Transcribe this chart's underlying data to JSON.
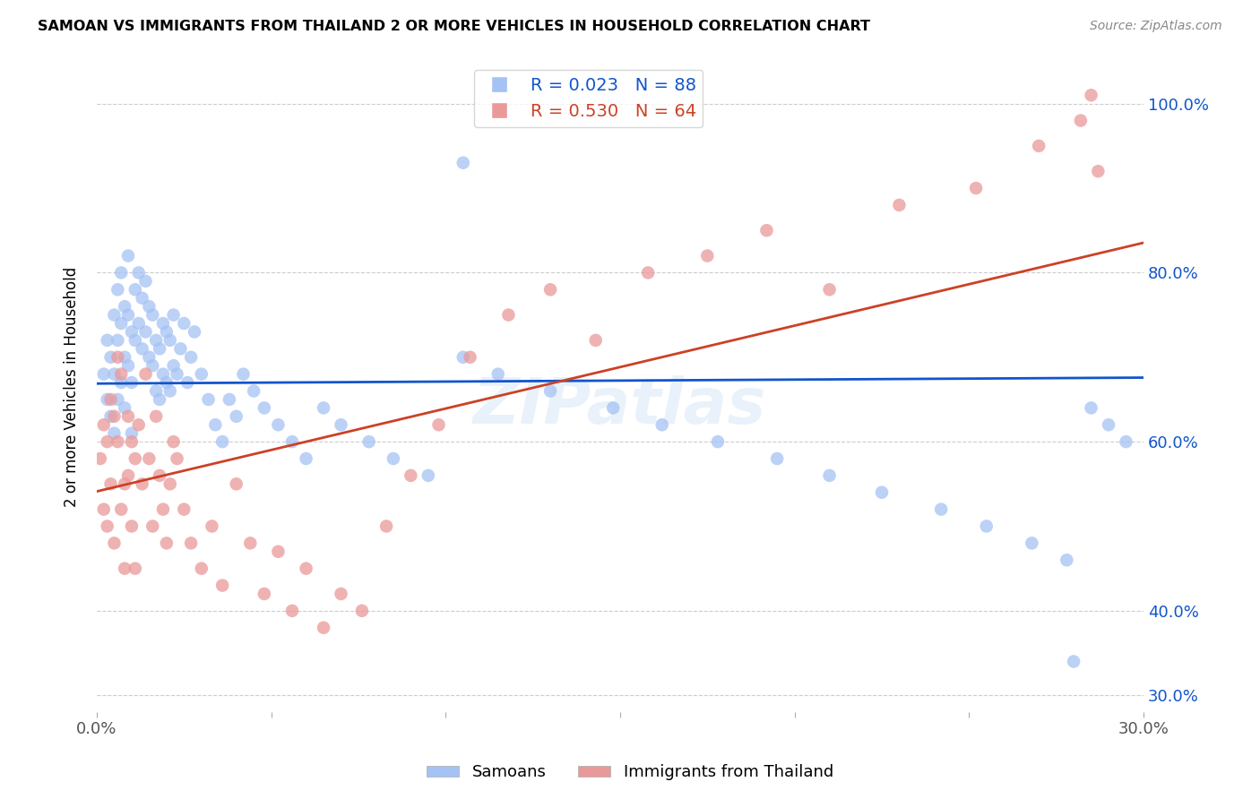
{
  "title": "SAMOAN VS IMMIGRANTS FROM THAILAND 2 OR MORE VEHICLES IN HOUSEHOLD CORRELATION CHART",
  "source": "Source: ZipAtlas.com",
  "ylabel": "2 or more Vehicles in Household",
  "xmin": 0.0,
  "xmax": 0.3,
  "ymin": 0.28,
  "ymax": 1.05,
  "yticks": [
    0.3,
    0.4,
    0.6,
    0.8,
    1.0
  ],
  "ytick_labels": [
    "30.0%",
    "40.0%",
    "60.0%",
    "80.0%",
    "100.0%"
  ],
  "xticks": [
    0.0,
    0.05,
    0.1,
    0.15,
    0.2,
    0.25,
    0.3
  ],
  "xtick_labels": [
    "0.0%",
    "",
    "",
    "",
    "",
    "",
    "30.0%"
  ],
  "samoan_R": 0.023,
  "samoan_N": 88,
  "thailand_R": 0.53,
  "thailand_N": 64,
  "samoan_color": "#a4c2f4",
  "thailand_color": "#ea9999",
  "samoan_line_color": "#1155cc",
  "thailand_line_color": "#cc4125",
  "legend_label_samoan": "Samoans",
  "legend_label_thailand": "Immigrants from Thailand",
  "watermark": "ZIPatlas",
  "samoan_x": [
    0.002,
    0.003,
    0.003,
    0.004,
    0.004,
    0.005,
    0.005,
    0.005,
    0.006,
    0.006,
    0.006,
    0.007,
    0.007,
    0.007,
    0.008,
    0.008,
    0.008,
    0.009,
    0.009,
    0.009,
    0.01,
    0.01,
    0.01,
    0.011,
    0.011,
    0.012,
    0.012,
    0.013,
    0.013,
    0.014,
    0.014,
    0.015,
    0.015,
    0.016,
    0.016,
    0.017,
    0.017,
    0.018,
    0.018,
    0.019,
    0.019,
    0.02,
    0.02,
    0.021,
    0.021,
    0.022,
    0.022,
    0.023,
    0.024,
    0.025,
    0.026,
    0.027,
    0.028,
    0.03,
    0.032,
    0.034,
    0.036,
    0.038,
    0.04,
    0.042,
    0.045,
    0.048,
    0.052,
    0.056,
    0.06,
    0.065,
    0.07,
    0.078,
    0.085,
    0.095,
    0.105,
    0.115,
    0.13,
    0.148,
    0.162,
    0.178,
    0.195,
    0.21,
    0.225,
    0.242,
    0.255,
    0.268,
    0.278,
    0.285,
    0.29,
    0.295,
    0.105,
    0.28
  ],
  "samoan_y": [
    0.68,
    0.72,
    0.65,
    0.7,
    0.63,
    0.75,
    0.68,
    0.61,
    0.78,
    0.72,
    0.65,
    0.8,
    0.74,
    0.67,
    0.76,
    0.7,
    0.64,
    0.82,
    0.75,
    0.69,
    0.73,
    0.67,
    0.61,
    0.78,
    0.72,
    0.8,
    0.74,
    0.77,
    0.71,
    0.79,
    0.73,
    0.76,
    0.7,
    0.75,
    0.69,
    0.72,
    0.66,
    0.71,
    0.65,
    0.74,
    0.68,
    0.73,
    0.67,
    0.72,
    0.66,
    0.75,
    0.69,
    0.68,
    0.71,
    0.74,
    0.67,
    0.7,
    0.73,
    0.68,
    0.65,
    0.62,
    0.6,
    0.65,
    0.63,
    0.68,
    0.66,
    0.64,
    0.62,
    0.6,
    0.58,
    0.64,
    0.62,
    0.6,
    0.58,
    0.56,
    0.7,
    0.68,
    0.66,
    0.64,
    0.62,
    0.6,
    0.58,
    0.56,
    0.54,
    0.52,
    0.5,
    0.48,
    0.46,
    0.64,
    0.62,
    0.6,
    0.93,
    0.34
  ],
  "thailand_x": [
    0.001,
    0.002,
    0.002,
    0.003,
    0.003,
    0.004,
    0.004,
    0.005,
    0.005,
    0.006,
    0.006,
    0.007,
    0.007,
    0.008,
    0.008,
    0.009,
    0.009,
    0.01,
    0.01,
    0.011,
    0.011,
    0.012,
    0.013,
    0.014,
    0.015,
    0.016,
    0.017,
    0.018,
    0.019,
    0.02,
    0.021,
    0.022,
    0.023,
    0.025,
    0.027,
    0.03,
    0.033,
    0.036,
    0.04,
    0.044,
    0.048,
    0.052,
    0.056,
    0.06,
    0.065,
    0.07,
    0.076,
    0.083,
    0.09,
    0.098,
    0.107,
    0.118,
    0.13,
    0.143,
    0.158,
    0.175,
    0.192,
    0.21,
    0.23,
    0.252,
    0.27,
    0.282,
    0.285,
    0.287
  ],
  "thailand_y": [
    0.58,
    0.62,
    0.52,
    0.6,
    0.5,
    0.65,
    0.55,
    0.63,
    0.48,
    0.7,
    0.6,
    0.68,
    0.52,
    0.55,
    0.45,
    0.63,
    0.56,
    0.6,
    0.5,
    0.58,
    0.45,
    0.62,
    0.55,
    0.68,
    0.58,
    0.5,
    0.63,
    0.56,
    0.52,
    0.48,
    0.55,
    0.6,
    0.58,
    0.52,
    0.48,
    0.45,
    0.5,
    0.43,
    0.55,
    0.48,
    0.42,
    0.47,
    0.4,
    0.45,
    0.38,
    0.42,
    0.4,
    0.5,
    0.56,
    0.62,
    0.7,
    0.75,
    0.78,
    0.72,
    0.8,
    0.82,
    0.85,
    0.78,
    0.88,
    0.9,
    0.95,
    0.98,
    1.01,
    0.92
  ]
}
